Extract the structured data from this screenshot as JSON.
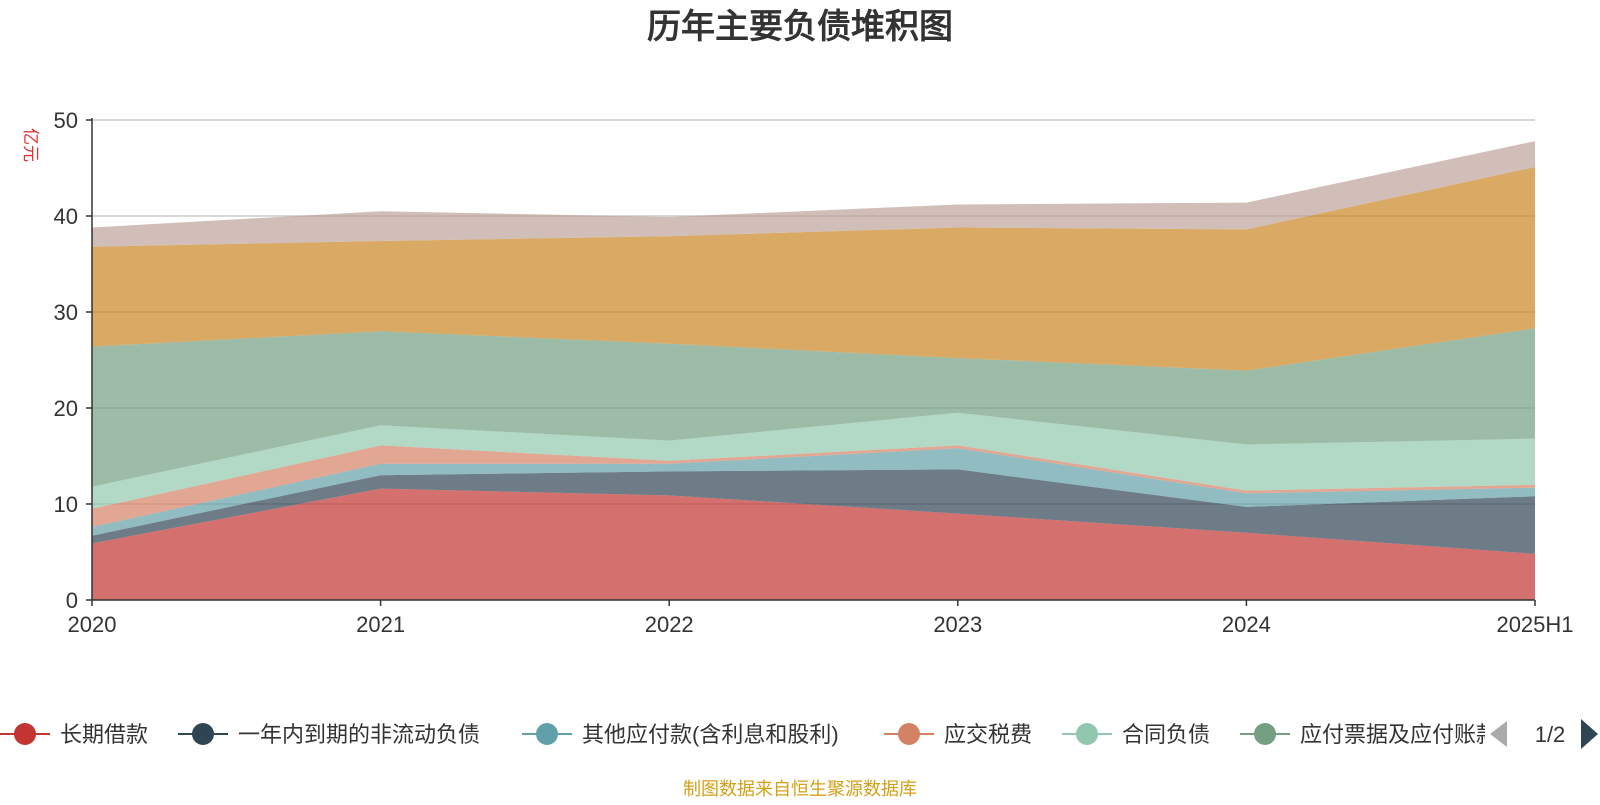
{
  "footer": {
    "source": "制图数据来自恒生聚源数据库"
  },
  "legend": {
    "page": "1/2"
  },
  "colors": {
    "title": "#333333",
    "ylabel": "#e03030",
    "axis": "#333333",
    "grid": "#cccccc",
    "footer": "#d4a017",
    "pager_inactive": "#aaaaaa",
    "pager_active": "#2f4554"
  },
  "chart_data": {
    "type": "area",
    "stacked": true,
    "title": "历年主要负债堆积图",
    "ylabel": "亿元",
    "xlabel": "",
    "x": [
      "2020",
      "2021",
      "2022",
      "2023",
      "2024",
      "2025H1"
    ],
    "ylim": [
      0,
      50
    ],
    "yticks": [
      0,
      10,
      20,
      30,
      40,
      50
    ],
    "grid": true,
    "legend_position": "bottom",
    "series": [
      {
        "name": "长期借款",
        "color": "#c23531",
        "values": [
          5.9,
          11.6,
          10.9,
          9.0,
          7.0,
          4.8
        ]
      },
      {
        "name": "一年内到期的非流动负债",
        "color": "#2f4554",
        "values": [
          0.8,
          1.4,
          2.5,
          4.6,
          2.7,
          6.0
        ]
      },
      {
        "name": "其他应付款(含利息和股利)",
        "color": "#61a0a8",
        "values": [
          0.9,
          1.2,
          0.8,
          2.2,
          1.4,
          0.9
        ]
      },
      {
        "name": "应交税费",
        "color": "#d48265",
        "values": [
          1.9,
          1.9,
          0.3,
          0.3,
          0.3,
          0.3
        ]
      },
      {
        "name": "合同负债",
        "color": "#91c7ae",
        "values": [
          2.3,
          2.1,
          2.1,
          3.4,
          4.8,
          4.8
        ]
      },
      {
        "name": "应付票据及应付账款",
        "color": "#749f83",
        "values": [
          14.6,
          9.8,
          10.1,
          5.7,
          7.7,
          11.5
        ]
      },
      {
        "name": "",
        "color": "#ca8622",
        "values": [
          10.4,
          9.4,
          11.2,
          13.6,
          14.7,
          16.8
        ]
      },
      {
        "name": "",
        "color": "#bda29a",
        "values": [
          2.0,
          3.1,
          2.0,
          2.4,
          2.8,
          2.7
        ]
      }
    ]
  }
}
